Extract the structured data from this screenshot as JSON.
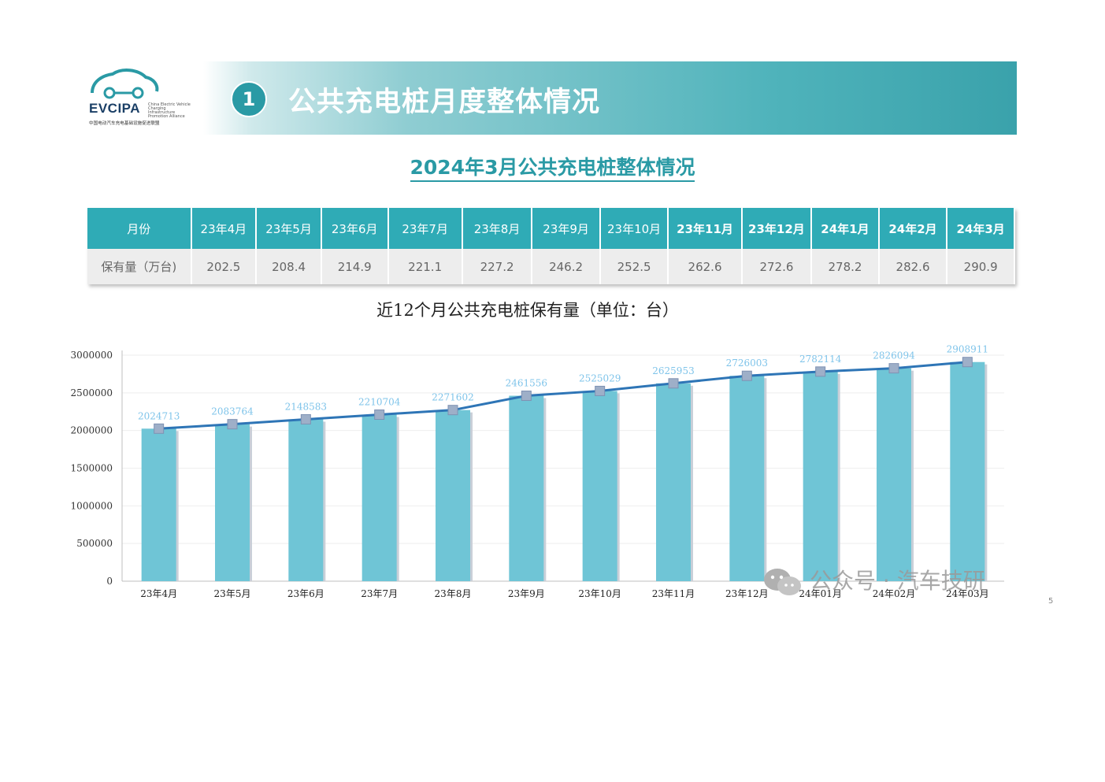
{
  "header": {
    "logo_text": "EVCIPA",
    "logo_en": "China Electric Vehicle Charging Infrastructure Promotion Alliance",
    "logo_cn": "中国电动汽车充电基础设施促进联盟",
    "section_number": "1",
    "banner_title": "公共充电桩月度整体情况"
  },
  "subtitle": "2024年3月公共充电桩整体情况",
  "summary_table": {
    "header_label": "月份",
    "row_label": "保有量（万台)",
    "months": [
      "23年4月",
      "23年5月",
      "23年6月",
      "23年7月",
      "23年8月",
      "23年9月",
      "23年10月",
      "23年11月",
      "23年12月",
      "24年1月",
      "24年2月",
      "24年3月"
    ],
    "values": [
      "202.5",
      "208.4",
      "214.9",
      "221.1",
      "227.2",
      "246.2",
      "252.5",
      "262.6",
      "272.6",
      "278.2",
      "282.6",
      "290.9"
    ]
  },
  "chart_data": {
    "type": "bar",
    "title": "近12个月公共充电桩保有量（单位：台）",
    "categories": [
      "23年4月",
      "23年5月",
      "23年6月",
      "23年7月",
      "23年8月",
      "23年9月",
      "23年10月",
      "23年11月",
      "23年12月",
      "24年01月",
      "24年02月",
      "24年03月"
    ],
    "values": [
      2024713,
      2083764,
      2148583,
      2210704,
      2271602,
      2461556,
      2525029,
      2625953,
      2726003,
      2782114,
      2826094,
      2908911
    ],
    "ylim": [
      0,
      3000000
    ],
    "yticks": [
      "3000000",
      "2500000",
      "2000000",
      "1500000",
      "1000000",
      "500000",
      "0"
    ],
    "overlay_line": true,
    "grid": true,
    "colors": {
      "bar": "#6fc5d6",
      "line": "#2e75b6",
      "marker": "#9eafc8",
      "label": "#7fc4ea"
    }
  },
  "watermark": "公众号 · 汽车技研",
  "page_number": "5"
}
